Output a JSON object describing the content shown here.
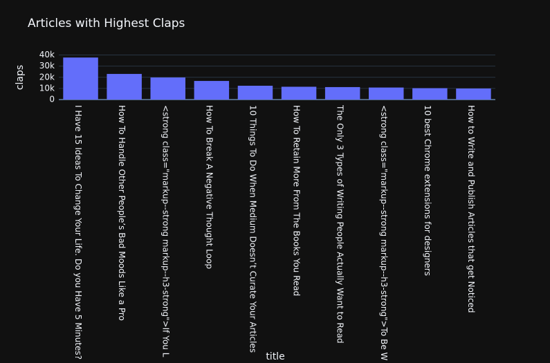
{
  "chart_data": {
    "type": "bar",
    "title": "Articles with Highest Claps",
    "x_label": "title",
    "y_label": "claps",
    "categories": [
      "I Have 15 Ideas To Change Your Life. Do you Have 5 Minutes?",
      "How To Handle Other People’s Bad Moods Like a Pro",
      "<strong class=\"markup--strong markup--h3-strong\">If You L",
      "How To Break A Negative Thought Loop",
      "10 Things To Do When Medium Doesn’t Curate Your Articles",
      "How To Retain More From The Books You Read",
      "The Only 3 Types of Writing People Actually Want to Read",
      "<strong class=\"markup--strong markup--h3-strong\">To Be W",
      "10 best Chrome extensions for designers",
      "How to Write and Publish Articles that get Noticed"
    ],
    "values": [
      37700,
      23000,
      19800,
      16700,
      12400,
      11500,
      11200,
      10800,
      10200,
      9900
    ],
    "color": "#636efa",
    "ylim": [
      0,
      40000
    ],
    "yticks": [
      0,
      {
        "value": 10000,
        "label": "10k"
      },
      {
        "value": 20000,
        "label": "20k"
      },
      {
        "value": 30000,
        "label": "30k"
      },
      {
        "value": 40000,
        "label": "40k"
      }
    ],
    "grid": true
  }
}
